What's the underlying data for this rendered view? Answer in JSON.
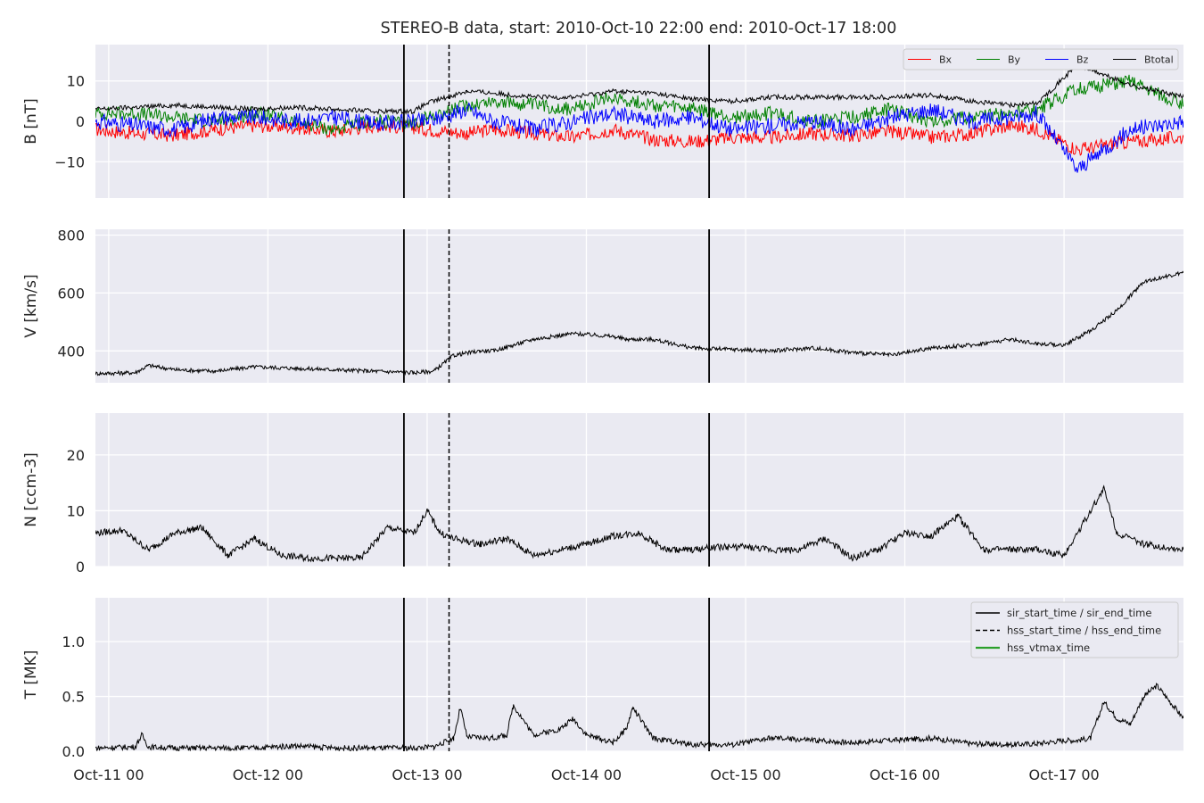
{
  "title": "STEREO-B data, start: 2010-Oct-10 22:00  end: 2010-Oct-17 18:00",
  "x_ticks": [
    "Oct-11 00",
    "Oct-12 00",
    "Oct-13 00",
    "Oct-14 00",
    "Oct-15 00",
    "Oct-16 00",
    "Oct-17 00"
  ],
  "colors": {
    "background": "#eaeaf2",
    "grid": "#ffffff",
    "bx": "#ff0000",
    "by": "#008000",
    "bz": "#0000ff",
    "btotal": "#000000",
    "hss_vtmax": "#2ca02c"
  },
  "chart_data": [
    {
      "type": "line",
      "ylabel": "B [nT]",
      "ylim": [
        -19,
        19
      ],
      "yticks": [
        -10,
        0,
        10
      ],
      "ytick_labels": [
        "−10",
        "0",
        "10"
      ],
      "legend": {
        "position": "top-right",
        "entries": [
          "Bx",
          "By",
          "Bz",
          "Btotal"
        ]
      },
      "series": [
        {
          "name": "Bx",
          "x": [
            0,
            6,
            12,
            18,
            24,
            30,
            36,
            42,
            48,
            50,
            56,
            60,
            66,
            72,
            78,
            84,
            90,
            96,
            102,
            108,
            114,
            120,
            126,
            132,
            138,
            142,
            148,
            156,
            164
          ],
          "y": [
            -2,
            -3,
            -3.5,
            -2,
            -1,
            -1.5,
            -2.5,
            -1,
            -1.5,
            -2,
            -3,
            -2,
            -3,
            -4,
            -2,
            -4.5,
            -5,
            -4,
            -4,
            -3,
            -3.5,
            -2.5,
            -4,
            -3,
            -1,
            -2,
            -7,
            -5,
            -4
          ]
        },
        {
          "name": "By",
          "x": [
            0,
            6,
            12,
            18,
            24,
            30,
            36,
            42,
            48,
            50,
            56,
            60,
            66,
            72,
            78,
            84,
            90,
            96,
            102,
            108,
            114,
            120,
            126,
            132,
            138,
            142,
            148,
            156,
            164
          ],
          "y": [
            2,
            2,
            1,
            0,
            2,
            0,
            -2,
            0,
            -0.5,
            1,
            4,
            5,
            4,
            3,
            6,
            4,
            3,
            1,
            2,
            0,
            1,
            3,
            0,
            1,
            2,
            3,
            8,
            10,
            4
          ]
        },
        {
          "name": "Bz",
          "x": [
            0,
            6,
            12,
            18,
            24,
            30,
            36,
            42,
            48,
            50,
            56,
            60,
            66,
            72,
            78,
            84,
            90,
            96,
            102,
            108,
            114,
            120,
            126,
            132,
            138,
            142,
            148,
            156,
            164
          ],
          "y": [
            0,
            -1,
            -2,
            1,
            1,
            0,
            1,
            -0.5,
            0,
            0,
            3,
            0,
            -2,
            0,
            2,
            0,
            1,
            -2,
            -1,
            0,
            -2,
            1,
            3,
            0,
            1,
            2,
            -12,
            -2,
            0
          ]
        },
        {
          "name": "Btotal",
          "x": [
            0,
            6,
            12,
            18,
            24,
            30,
            36,
            42,
            48,
            50,
            56,
            60,
            66,
            72,
            78,
            84,
            90,
            96,
            102,
            108,
            114,
            120,
            126,
            132,
            138,
            142,
            148,
            156,
            164
          ],
          "y": [
            3,
            3.5,
            4,
            3.5,
            3,
            3.5,
            3,
            2.5,
            2.5,
            4.5,
            7.5,
            7,
            6,
            6,
            7.5,
            7,
            5.5,
            5,
            6,
            6,
            6,
            6,
            6.5,
            5,
            4,
            4.5,
            14,
            9,
            6
          ]
        }
      ]
    },
    {
      "type": "line",
      "ylabel": "V [km/s]",
      "ylim": [
        290,
        820
      ],
      "yticks": [
        400,
        600,
        800
      ],
      "series": [
        {
          "x": [
            0,
            6,
            8,
            12,
            18,
            24,
            30,
            36,
            42,
            48,
            51,
            54,
            58,
            60,
            66,
            72,
            78,
            80,
            84,
            90,
            96,
            102,
            108,
            114,
            120,
            126,
            132,
            138,
            142,
            146,
            150,
            154,
            158,
            164
          ],
          "y": [
            322,
            325,
            350,
            335,
            330,
            345,
            340,
            335,
            330,
            325,
            330,
            385,
            400,
            400,
            440,
            460,
            450,
            440,
            440,
            410,
            405,
            400,
            410,
            395,
            385,
            410,
            420,
            440,
            425,
            420,
            470,
            540,
            640,
            670
          ]
        }
      ]
    },
    {
      "type": "line",
      "ylabel": "N [ccm-3]",
      "ylim": [
        0,
        27.5
      ],
      "yticks": [
        0,
        10,
        20
      ],
      "series": [
        {
          "x": [
            0,
            4,
            8,
            12,
            16,
            20,
            24,
            28,
            32,
            36,
            40,
            44,
            46,
            48,
            50,
            52,
            54,
            58,
            62,
            66,
            70,
            74,
            78,
            82,
            86,
            90,
            94,
            98,
            102,
            106,
            110,
            114,
            118,
            122,
            126,
            130,
            134,
            138,
            142,
            146,
            150,
            152,
            154,
            156,
            158,
            164
          ],
          "y": [
            6,
            6.5,
            3,
            6,
            7,
            2,
            5,
            2,
            1.5,
            1.5,
            1.5,
            7,
            6.5,
            6,
            10,
            6,
            5,
            4,
            5,
            2,
            3,
            4,
            5.5,
            6,
            3,
            3,
            3.5,
            3.5,
            3,
            3,
            5,
            1.5,
            3,
            6,
            5.5,
            9,
            3,
            3,
            3,
            2,
            10,
            14,
            6,
            5,
            4,
            3
          ]
        }
      ]
    },
    {
      "type": "line",
      "ylabel": "T [MK]",
      "ylim": [
        0,
        1.4
      ],
      "yticks": [
        0.0,
        0.5,
        1.0
      ],
      "ytick_labels": [
        "0.0",
        "0.5",
        "1.0"
      ],
      "legend": {
        "position": "top-right",
        "entries": [
          "sir_start_time / sir_end_time",
          "hss_start_time / hss_end_time",
          "hss_vtmax_time"
        ]
      },
      "series": [
        {
          "x": [
            0,
            6,
            7,
            8,
            12,
            24,
            30,
            36,
            42,
            48,
            51,
            54,
            55,
            56,
            60,
            62,
            63,
            66,
            70,
            72,
            74,
            78,
            80,
            81,
            84,
            90,
            96,
            102,
            108,
            114,
            120,
            126,
            132,
            138,
            142,
            146,
            148,
            150,
            152,
            154,
            156,
            158,
            160,
            164
          ],
          "y": [
            0.03,
            0.04,
            0.15,
            0.04,
            0.03,
            0.03,
            0.05,
            0.03,
            0.03,
            0.03,
            0.04,
            0.12,
            0.4,
            0.13,
            0.12,
            0.15,
            0.42,
            0.15,
            0.2,
            0.3,
            0.15,
            0.08,
            0.2,
            0.4,
            0.12,
            0.06,
            0.06,
            0.12,
            0.1,
            0.08,
            0.1,
            0.12,
            0.07,
            0.06,
            0.07,
            0.1,
            0.1,
            0.12,
            0.45,
            0.3,
            0.25,
            0.5,
            0.6,
            0.3
          ]
        }
      ]
    }
  ],
  "vertical_markers": {
    "sir_start_time": 46.5,
    "sir_end_time": 92.5,
    "hss_start_time": 53.3
  }
}
